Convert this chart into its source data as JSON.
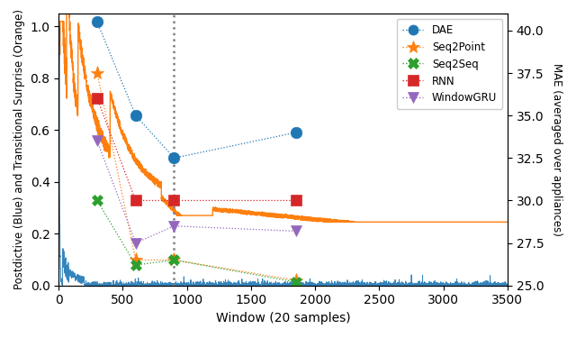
{
  "title": "",
  "xlabel": "Window (20 samples)",
  "ylabel_left": "Postdictive (Blue) and Transitional Surprise (Orange)",
  "ylabel_right": "MAE (averaged over appliances)",
  "xlim": [
    0,
    3500
  ],
  "ylim_left": [
    0.0,
    1.05
  ],
  "ylim_right": [
    25.0,
    41.0
  ],
  "right_yticks": [
    25.0,
    27.5,
    30.0,
    32.5,
    35.0,
    37.5,
    40.0
  ],
  "vline_x": 900,
  "mae_data": {
    "DAE": {
      "x": [
        300,
        600,
        900,
        1850
      ],
      "mae": [
        40.5,
        35.0,
        32.5,
        34.0
      ]
    },
    "Seq2Point": {
      "x": [
        300,
        600,
        900,
        1850
      ],
      "mae": [
        37.5,
        26.5,
        26.5,
        25.3
      ]
    },
    "Seq2Seq": {
      "x": [
        300,
        600,
        900,
        1850
      ],
      "mae": [
        30.0,
        26.2,
        26.5,
        25.2
      ]
    },
    "RNN": {
      "x": [
        300,
        600,
        900,
        1850
      ],
      "mae": [
        36.0,
        30.0,
        30.0,
        30.0
      ]
    },
    "WindowGRU": {
      "x": [
        300,
        600,
        900,
        1850
      ],
      "mae": [
        33.5,
        27.5,
        28.5,
        28.2
      ]
    }
  },
  "models": {
    "DAE": {
      "color": "#1f77b4",
      "marker": "o",
      "linestyle": ":",
      "markersize": 9
    },
    "Seq2Point": {
      "color": "#ff7f0e",
      "marker": "*",
      "linestyle": ":",
      "markersize": 11
    },
    "Seq2Seq": {
      "color": "#2ca02c",
      "marker": "X",
      "linestyle": ":",
      "markersize": 9
    },
    "RNN": {
      "color": "#d62728",
      "marker": "s",
      "linestyle": ":",
      "markersize": 9
    },
    "WindowGRU": {
      "color": "#9467bd",
      "marker": "v",
      "linestyle": ":",
      "markersize": 9
    }
  },
  "legend_labels": [
    "DAE",
    "Seq2Point",
    "Seq2Seq",
    "RNN",
    "WindowGRU"
  ]
}
